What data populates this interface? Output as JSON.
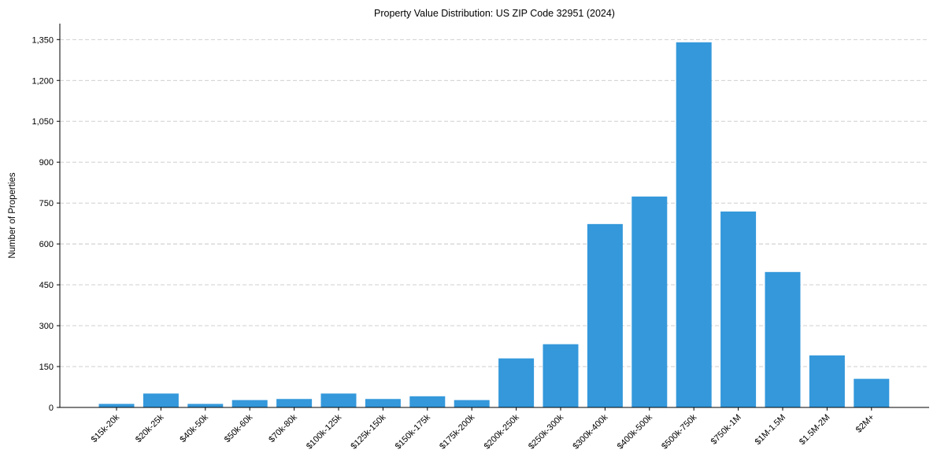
{
  "chart_data": {
    "type": "bar",
    "title": "Property Value Distribution: US ZIP Code 32951 (2024)",
    "xlabel": "",
    "ylabel": "Number of Properties",
    "categories": [
      "$15k-20k",
      "$20k-25k",
      "$40k-50k",
      "$50k-60k",
      "$70k-80k",
      "$100k-125k",
      "$125k-150k",
      "$150k-175k",
      "$175k-200k",
      "$200k-250k",
      "$250k-300k",
      "$300k-400k",
      "$400k-500k",
      "$500k-750k",
      "$750k-1M",
      "$1M-1.5M",
      "$1.5M-2M",
      "$2M+"
    ],
    "values": [
      13,
      51,
      13,
      27,
      31,
      51,
      31,
      41,
      27,
      180,
      232,
      673,
      774,
      1340,
      719,
      497,
      191,
      105
    ],
    "ylim": [
      0,
      1410
    ],
    "yticks": [
      0,
      150,
      300,
      450,
      600,
      750,
      900,
      1050,
      1200,
      1350
    ],
    "ytick_labels": [
      "0",
      "150",
      "300",
      "450",
      "600",
      "750",
      "900",
      "1,050",
      "1,200",
      "1,350"
    ],
    "grid": "y, dashed",
    "bar_color": "#3498db"
  }
}
